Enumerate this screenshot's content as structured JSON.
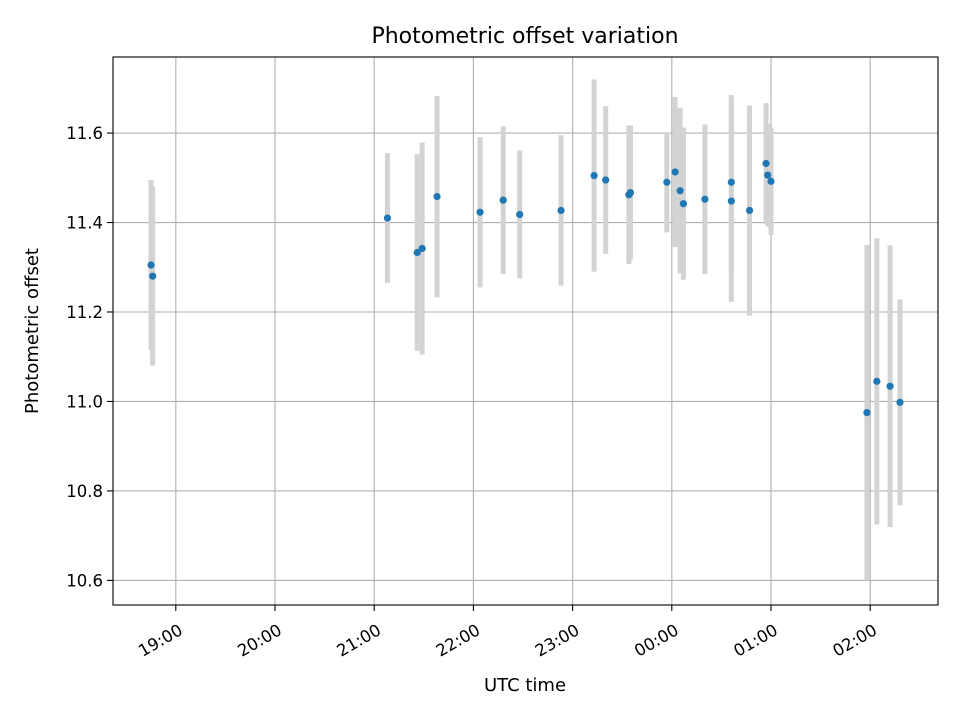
{
  "chart_data": {
    "type": "scatter",
    "title": "Photometric offset variation",
    "xlabel": "UTC time",
    "ylabel": "Photometric offset",
    "x_axis_type": "time",
    "xlim": [
      "18:22",
      "02:41"
    ],
    "ylim": [
      10.545,
      11.77
    ],
    "grid": true,
    "x_ticks": [
      "19:00",
      "20:00",
      "21:00",
      "22:00",
      "23:00",
      "00:00",
      "01:00",
      "02:00"
    ],
    "y_ticks": [
      "10.6",
      "10.8",
      "11.0",
      "11.2",
      "11.4",
      "11.6"
    ],
    "point_color": "#1f77b4",
    "errorbar_color": "#d3d3d3",
    "series": [
      {
        "points": [
          {
            "x": "18:45",
            "y": 11.305,
            "err": 0.19
          },
          {
            "x": "18:46",
            "y": 11.28,
            "err": 0.2
          },
          {
            "x": "21:08",
            "y": 11.41,
            "err": 0.145
          },
          {
            "x": "21:26",
            "y": 11.333,
            "err": 0.22
          },
          {
            "x": "21:29",
            "y": 11.342,
            "err": 0.237
          },
          {
            "x": "21:38",
            "y": 11.458,
            "err": 0.225
          },
          {
            "x": "22:04",
            "y": 11.423,
            "err": 0.168
          },
          {
            "x": "22:18",
            "y": 11.45,
            "err": 0.165
          },
          {
            "x": "22:28",
            "y": 11.418,
            "err": 0.143
          },
          {
            "x": "22:53",
            "y": 11.427,
            "err": 0.168
          },
          {
            "x": "23:13",
            "y": 11.505,
            "err": 0.215
          },
          {
            "x": "23:20",
            "y": 11.495,
            "err": 0.165
          },
          {
            "x": "23:34",
            "y": 11.462,
            "err": 0.155
          },
          {
            "x": "23:35",
            "y": 11.467,
            "err": 0.15
          },
          {
            "x": "23:57",
            "y": 11.49,
            "err": 0.112
          },
          {
            "x": "00:02",
            "y": 11.513,
            "err": 0.168
          },
          {
            "x": "00:05",
            "y": 11.471,
            "err": 0.185
          },
          {
            "x": "00:07",
            "y": 11.442,
            "err": 0.17
          },
          {
            "x": "00:20",
            "y": 11.452,
            "err": 0.167
          },
          {
            "x": "00:36",
            "y": 11.49,
            "err": 0.195
          },
          {
            "x": "00:36",
            "y": 11.448,
            "err": 0.225
          },
          {
            "x": "00:47",
            "y": 11.427,
            "err": 0.235
          },
          {
            "x": "00:57",
            "y": 11.532,
            "err": 0.135
          },
          {
            "x": "00:58",
            "y": 11.506,
            "err": 0.115
          },
          {
            "x": "01:00",
            "y": 11.492,
            "err": 0.12
          },
          {
            "x": "01:58",
            "y": 10.975,
            "err": 0.375
          },
          {
            "x": "02:04",
            "y": 11.045,
            "err": 0.32
          },
          {
            "x": "02:12",
            "y": 11.034,
            "err": 0.315
          },
          {
            "x": "02:18",
            "y": 10.998,
            "err": 0.23
          }
        ]
      }
    ]
  }
}
